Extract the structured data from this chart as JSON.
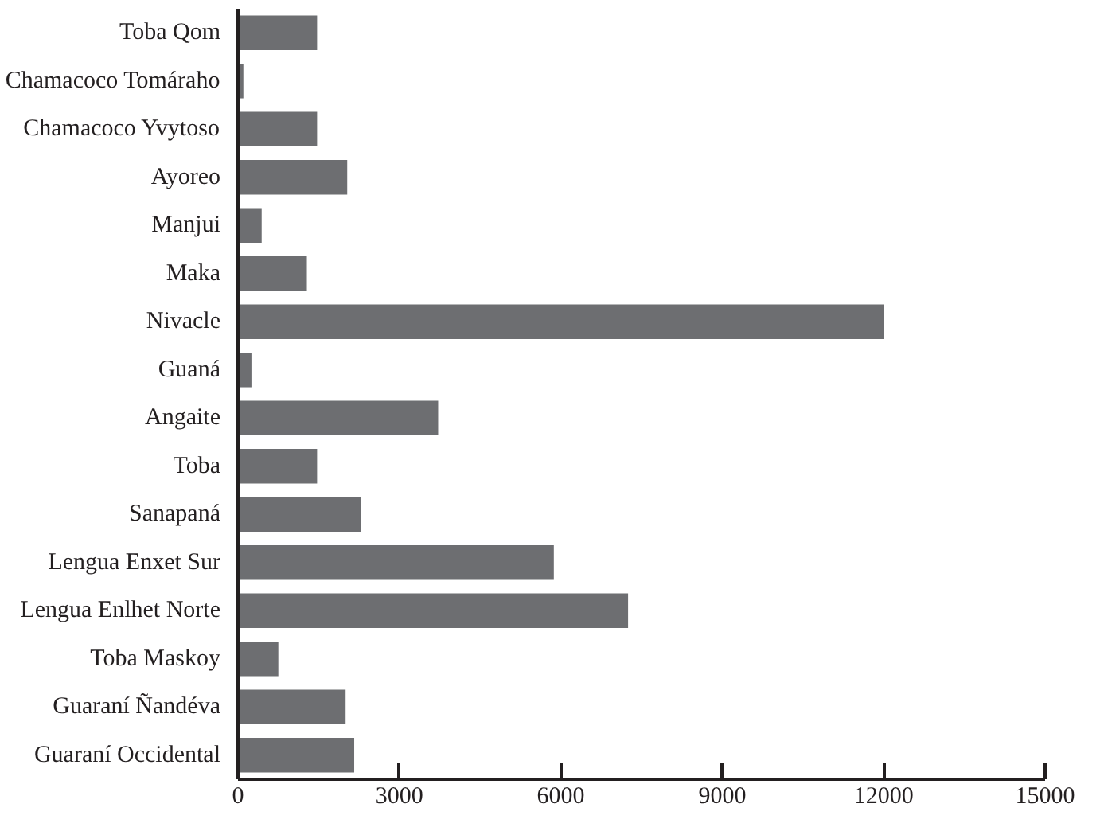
{
  "chart_data": {
    "type": "bar",
    "orientation": "horizontal",
    "categories": [
      "Toba Qom",
      "Chamacoco Tomáraho",
      "Chamacoco Yvytoso",
      "Ayoreo",
      "Manjui",
      "Maka",
      "Nivacle",
      "Guaná",
      "Angaite",
      "Toba",
      "Sanapaná",
      "Lengua Enxet Sur",
      "Lengua Enlhet Norte",
      "Toba Maskoy",
      "Guaraní Ñandéva",
      "Guaraní Occidental"
    ],
    "values": [
      1470,
      100,
      1470,
      2030,
      440,
      1280,
      12000,
      250,
      3720,
      1470,
      2280,
      5870,
      7250,
      750,
      2000,
      2160
    ],
    "color": "#6d6e71",
    "xlim": [
      0,
      15000
    ],
    "xticks": [
      0,
      3000,
      6000,
      9000,
      12000,
      15000
    ],
    "grid": false
  }
}
